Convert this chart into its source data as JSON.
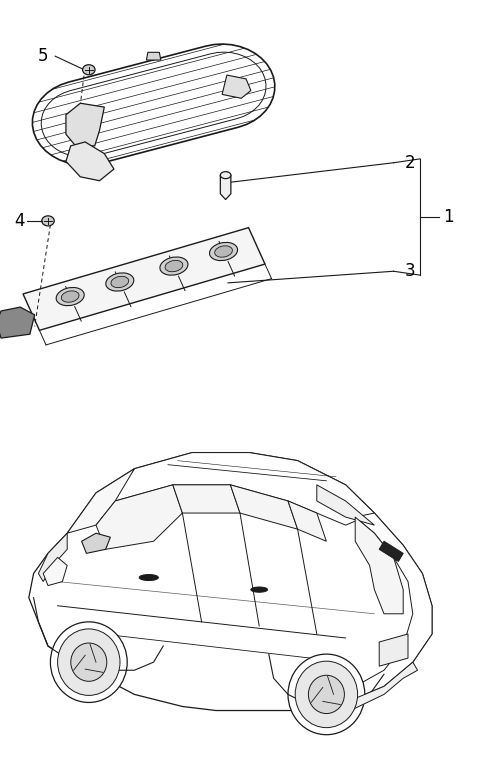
{
  "bg": "#ffffff",
  "lc": "#1a1a1a",
  "fig_w": 4.8,
  "fig_h": 7.75,
  "dpi": 100
}
